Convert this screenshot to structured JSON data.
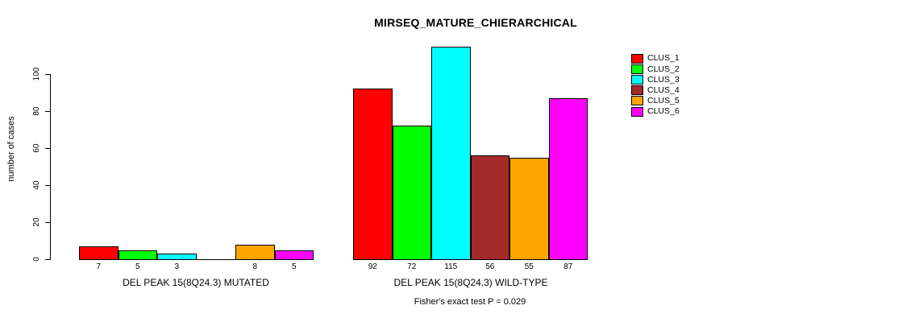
{
  "chart_data": {
    "type": "bar",
    "title": "MIRSEQ_MATURE_CHIERARCHICAL",
    "ylabel": "number of cases",
    "sub": "Fisher's exact test P = 0.029",
    "categories": [
      "DEL PEAK 15(8Q24.3) MUTATED",
      "DEL PEAK 15(8Q24.3) WILD-TYPE"
    ],
    "series": [
      {
        "name": "CLUS_1",
        "color": "#ff0000",
        "values": [
          7,
          92
        ]
      },
      {
        "name": "CLUS_2",
        "color": "#00ff00",
        "values": [
          5,
          72
        ]
      },
      {
        "name": "CLUS_3",
        "color": "#00ffff",
        "values": [
          3,
          115
        ]
      },
      {
        "name": "CLUS_4",
        "color": "#a52a2a",
        "values": [
          0,
          56
        ]
      },
      {
        "name": "CLUS_5",
        "color": "#ffa500",
        "values": [
          8,
          55
        ]
      },
      {
        "name": "CLUS_6",
        "color": "#ff00ff",
        "values": [
          5,
          87
        ]
      }
    ],
    "yticks": [
      0,
      20,
      40,
      60,
      80,
      100
    ],
    "ylim": [
      0,
      115
    ],
    "bar_value_labels_shown": true,
    "zero_value_label_hidden": true,
    "legend_position": "top-right",
    "legend_border": "none",
    "grid": false,
    "background": "#ffffff",
    "axis_color": "#000000"
  }
}
